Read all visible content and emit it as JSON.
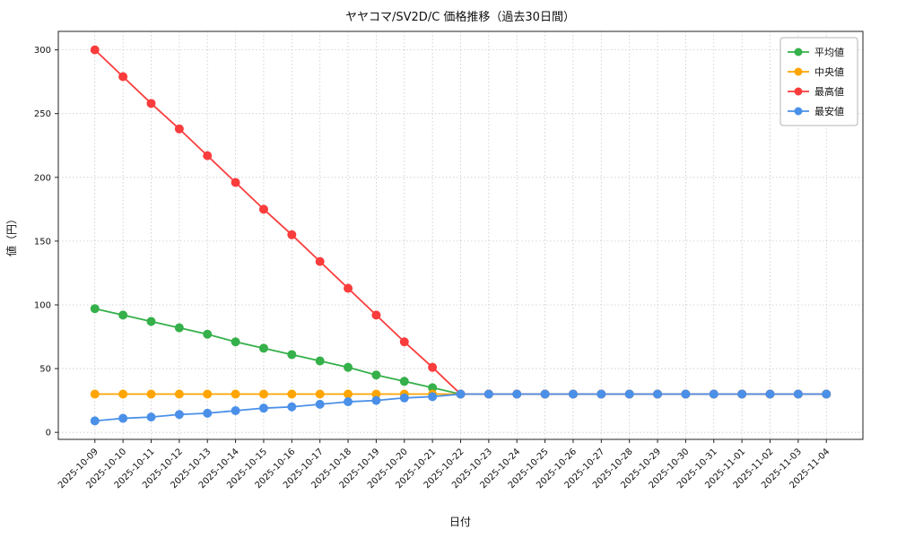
{
  "chart_data": {
    "type": "line",
    "title": "ヤヤコマ/SV2D/C 価格推移（過去30日間）",
    "xlabel": "日付",
    "ylabel": "値（円）",
    "x": [
      "2025-10-09",
      "2025-10-10",
      "2025-10-11",
      "2025-10-12",
      "2025-10-13",
      "2025-10-14",
      "2025-10-15",
      "2025-10-16",
      "2025-10-17",
      "2025-10-18",
      "2025-10-19",
      "2025-10-20",
      "2025-10-21",
      "2025-10-22",
      "2025-10-23",
      "2025-10-24",
      "2025-10-25",
      "2025-10-26",
      "2025-10-27",
      "2025-10-28",
      "2025-10-29",
      "2025-10-30",
      "2025-10-31",
      "2025-11-01",
      "2025-11-02",
      "2025-11-03",
      "2025-11-04"
    ],
    "series": [
      {
        "name": "平均値",
        "color": "#35b04a",
        "values": [
          97,
          92,
          87,
          82,
          77,
          71,
          66,
          61,
          56,
          51,
          45,
          40,
          35,
          30,
          30,
          30,
          30,
          30,
          30,
          30,
          30,
          30,
          30,
          30,
          30,
          30,
          30
        ]
      },
      {
        "name": "中央値",
        "color": "#ffa502",
        "values": [
          30,
          30,
          30,
          30,
          30,
          30,
          30,
          30,
          30,
          30,
          30,
          30,
          30,
          30,
          30,
          30,
          30,
          30,
          30,
          30,
          30,
          30,
          30,
          30,
          30,
          30,
          30
        ]
      },
      {
        "name": "最高値",
        "color": "#fa3c3c",
        "values": [
          300,
          279,
          258,
          238,
          217,
          196,
          175,
          155,
          134,
          113,
          92,
          71,
          51,
          30,
          30,
          30,
          30,
          30,
          30,
          30,
          30,
          30,
          30,
          30,
          30,
          30,
          30
        ]
      },
      {
        "name": "最安値",
        "color": "#4a90e8",
        "values": [
          9,
          11,
          12,
          14,
          15,
          17,
          19,
          20,
          22,
          24,
          25,
          27,
          28,
          30,
          30,
          30,
          30,
          30,
          30,
          30,
          30,
          30,
          30,
          30,
          30,
          30,
          30
        ]
      }
    ],
    "yticks": [
      0,
      50,
      100,
      150,
      200,
      250,
      300
    ],
    "ylim": [
      -5.5,
      314.5
    ],
    "grid": true,
    "legend_position": "upper right",
    "grid_color": "#c9c9c9",
    "spine_color": "#222222",
    "background_color": "#ffffff"
  }
}
